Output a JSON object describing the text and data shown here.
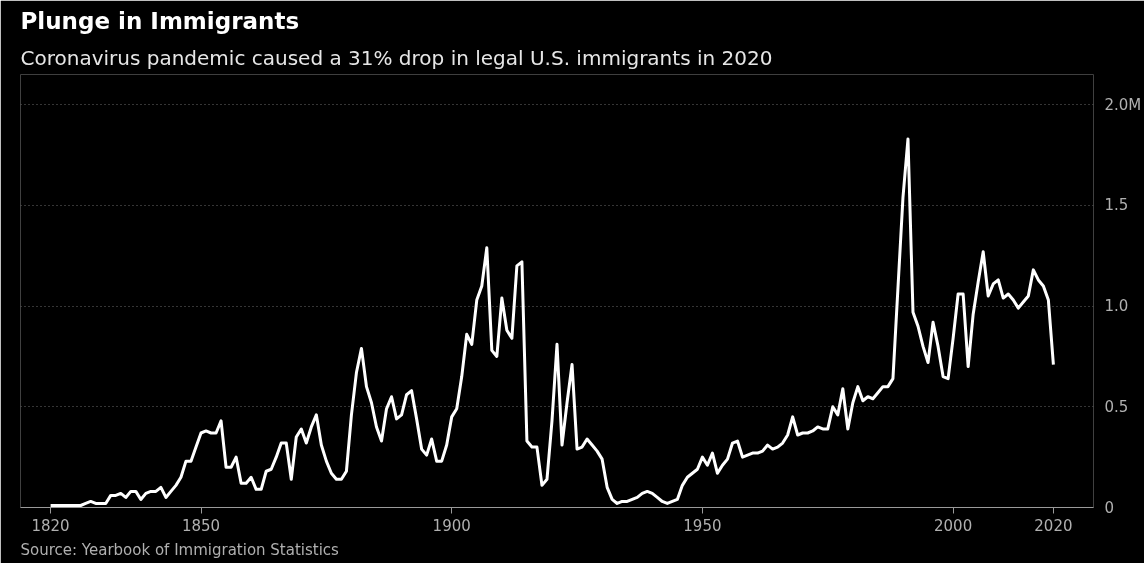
{
  "chart_data": {
    "type": "line",
    "title": "Plunge in Immigrants",
    "subtitle": "Coronavirus pandemic caused a 31% drop in legal U.S. immigrants in 2020",
    "annotations": [
      "Source: Yearbook of Immigration Statistics"
    ],
    "x": [
      1820,
      1821,
      1822,
      1823,
      1824,
      1825,
      1826,
      1827,
      1828,
      1829,
      1830,
      1831,
      1832,
      1833,
      1834,
      1835,
      1836,
      1837,
      1838,
      1839,
      1840,
      1841,
      1842,
      1843,
      1844,
      1845,
      1846,
      1847,
      1848,
      1849,
      1850,
      1851,
      1852,
      1853,
      1854,
      1855,
      1856,
      1857,
      1858,
      1859,
      1860,
      1861,
      1862,
      1863,
      1864,
      1865,
      1866,
      1867,
      1868,
      1869,
      1870,
      1871,
      1872,
      1873,
      1874,
      1875,
      1876,
      1877,
      1878,
      1879,
      1880,
      1881,
      1882,
      1883,
      1884,
      1885,
      1886,
      1887,
      1888,
      1889,
      1890,
      1891,
      1892,
      1893,
      1894,
      1895,
      1896,
      1897,
      1898,
      1899,
      1900,
      1901,
      1902,
      1903,
      1904,
      1905,
      1906,
      1907,
      1908,
      1909,
      1910,
      1911,
      1912,
      1913,
      1914,
      1915,
      1916,
      1917,
      1918,
      1919,
      1920,
      1921,
      1922,
      1923,
      1924,
      1925,
      1926,
      1927,
      1928,
      1929,
      1930,
      1931,
      1932,
      1933,
      1934,
      1935,
      1936,
      1937,
      1938,
      1939,
      1940,
      1941,
      1942,
      1943,
      1944,
      1945,
      1946,
      1947,
      1948,
      1949,
      1950,
      1951,
      1952,
      1953,
      1954,
      1955,
      1956,
      1957,
      1958,
      1959,
      1960,
      1961,
      1962,
      1963,
      1964,
      1965,
      1966,
      1967,
      1968,
      1969,
      1970,
      1971,
      1972,
      1973,
      1974,
      1975,
      1976,
      1977,
      1978,
      1979,
      1980,
      1981,
      1982,
      1983,
      1984,
      1985,
      1986,
      1987,
      1988,
      1989,
      1990,
      1991,
      1992,
      1993,
      1994,
      1995,
      1996,
      1997,
      1998,
      1999,
      2000,
      2001,
      2002,
      2003,
      2004,
      2005,
      2006,
      2007,
      2008,
      2009,
      2010,
      2011,
      2012,
      2013,
      2014,
      2015,
      2016,
      2017,
      2018,
      2019,
      2020
    ],
    "series": [
      {
        "color": "#ffffff",
        "values": [
          0.01,
          0.01,
          0.01,
          0.01,
          0.01,
          0.01,
          0.01,
          0.02,
          0.03,
          0.02,
          0.02,
          0.02,
          0.06,
          0.06,
          0.07,
          0.05,
          0.08,
          0.08,
          0.04,
          0.07,
          0.08,
          0.08,
          0.1,
          0.05,
          0.08,
          0.11,
          0.15,
          0.23,
          0.23,
          0.3,
          0.37,
          0.38,
          0.37,
          0.37,
          0.43,
          0.2,
          0.2,
          0.25,
          0.12,
          0.12,
          0.15,
          0.09,
          0.09,
          0.18,
          0.19,
          0.25,
          0.32,
          0.32,
          0.14,
          0.35,
          0.39,
          0.32,
          0.4,
          0.46,
          0.31,
          0.23,
          0.17,
          0.14,
          0.14,
          0.18,
          0.46,
          0.67,
          0.79,
          0.6,
          0.52,
          0.4,
          0.33,
          0.49,
          0.55,
          0.44,
          0.46,
          0.56,
          0.58,
          0.44,
          0.29,
          0.26,
          0.34,
          0.23,
          0.23,
          0.31,
          0.45,
          0.49,
          0.65,
          0.86,
          0.81,
          1.03,
          1.1,
          1.29,
          0.78,
          0.75,
          1.04,
          0.88,
          0.84,
          1.2,
          1.22,
          0.33,
          0.3,
          0.3,
          0.11,
          0.14,
          0.43,
          0.81,
          0.31,
          0.52,
          0.71,
          0.29,
          0.3,
          0.34,
          0.31,
          0.28,
          0.24,
          0.1,
          0.04,
          0.02,
          0.03,
          0.03,
          0.04,
          0.05,
          0.07,
          0.08,
          0.07,
          0.05,
          0.03,
          0.02,
          0.03,
          0.04,
          0.11,
          0.15,
          0.17,
          0.19,
          0.25,
          0.21,
          0.27,
          0.17,
          0.21,
          0.24,
          0.32,
          0.33,
          0.25,
          0.26,
          0.27,
          0.27,
          0.28,
          0.31,
          0.29,
          0.3,
          0.32,
          0.36,
          0.45,
          0.36,
          0.37,
          0.37,
          0.38,
          0.4,
          0.39,
          0.39,
          0.5,
          0.46,
          0.59,
          0.39,
          0.52,
          0.6,
          0.53,
          0.55,
          0.54,
          0.57,
          0.6,
          0.6,
          0.64,
          1.09,
          1.54,
          1.83,
          0.97,
          0.9,
          0.8,
          0.72,
          0.92,
          0.8,
          0.65,
          0.64,
          0.84,
          1.06,
          1.06,
          0.7,
          0.96,
          1.12,
          1.27,
          1.05,
          1.11,
          1.13,
          1.04,
          1.06,
          1.03,
          0.99,
          1.02,
          1.05,
          1.18,
          1.13,
          1.1,
          1.03,
          0.71
        ]
      }
    ],
    "xlim": [
      1814,
      2028
    ],
    "xticks": [
      1820,
      1850,
      1900,
      1950,
      2000,
      2020
    ],
    "ylim": [
      0,
      2.15
    ],
    "yticks": [
      {
        "value": 0,
        "label": "0"
      },
      {
        "value": 0.5,
        "label": "0.5"
      },
      {
        "value": 1.0,
        "label": "1.0"
      },
      {
        "value": 1.5,
        "label": "1.5"
      },
      {
        "value": 2.0,
        "label": "2.0M"
      }
    ],
    "grid": "y"
  }
}
